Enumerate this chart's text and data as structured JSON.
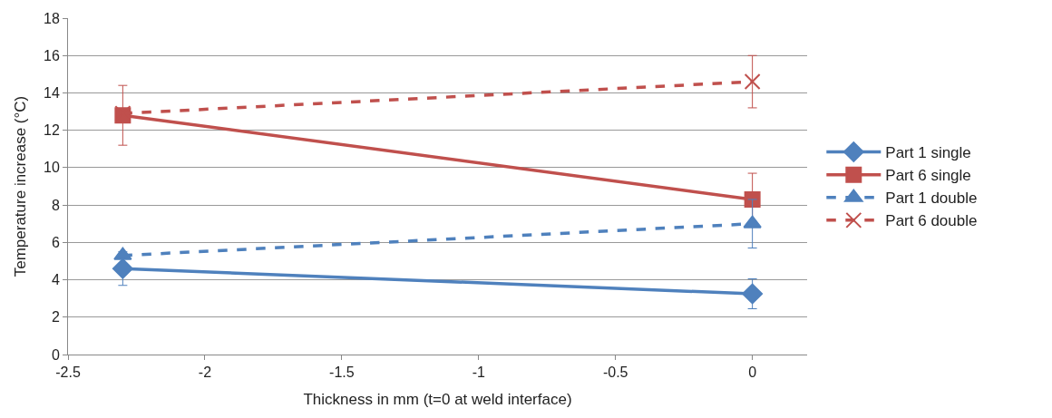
{
  "chart_data": {
    "type": "line",
    "xlabel": "Thickness in mm (t=0 at weld interface)",
    "ylabel": "Temperature increase (°C)",
    "x": [
      -2.3,
      0
    ],
    "series": [
      {
        "name": "Part 1 single",
        "color": "#4f81bd",
        "values": [
          4.6,
          3.25
        ],
        "errors": [
          0.9,
          0.8
        ],
        "marker": "diamond",
        "line_style": "solid"
      },
      {
        "name": "Part 6 single",
        "color": "#c0504d",
        "values": [
          12.8,
          8.3
        ],
        "errors": [
          1.6,
          1.4
        ],
        "marker": "square",
        "line_style": "solid"
      },
      {
        "name": "Part 1 double",
        "color": "#4f81bd",
        "values": [
          5.3,
          7.0
        ],
        "errors": [
          null,
          1.3
        ],
        "marker": "triangle",
        "line_style": "dashed"
      },
      {
        "name": "Part 6 double",
        "color": "#c0504d",
        "values": [
          12.9,
          14.6
        ],
        "errors": [
          null,
          1.4
        ],
        "marker": "cross",
        "line_style": "dashed"
      }
    ],
    "xlim": [
      -2.5,
      0.2
    ],
    "xticks": [
      -2.5,
      -2,
      -1.5,
      -1,
      -0.5,
      0
    ],
    "ylim": [
      0,
      18
    ],
    "yticks": [
      0,
      2,
      4,
      6,
      8,
      10,
      12,
      14,
      16,
      18
    ],
    "grid": "y",
    "legend": "right"
  }
}
